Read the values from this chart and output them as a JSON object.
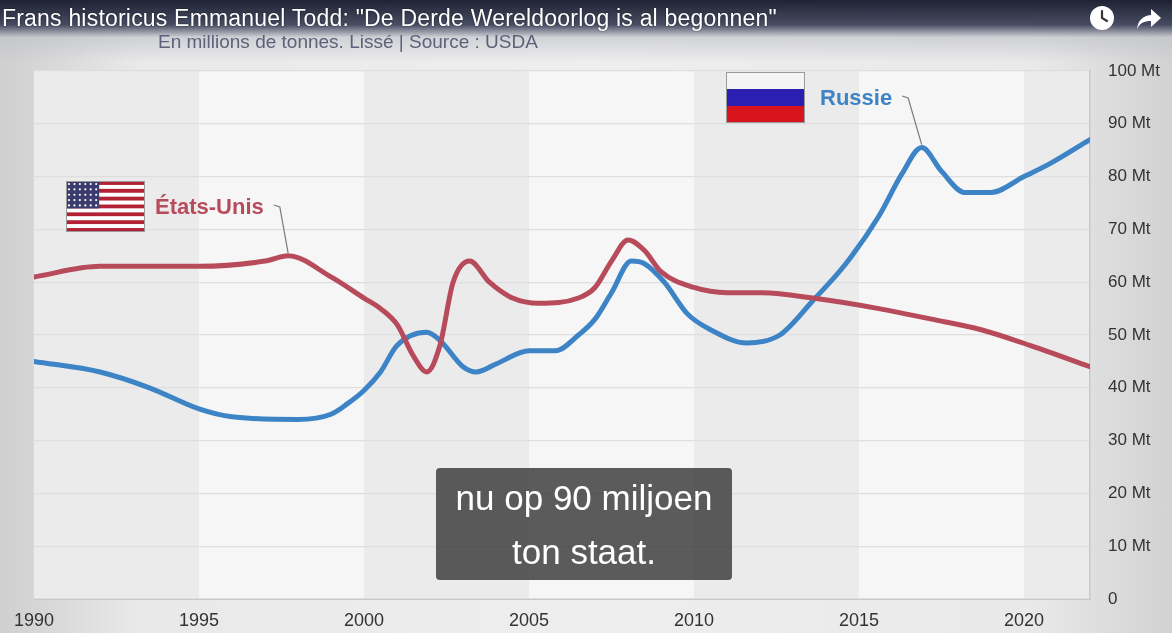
{
  "chart_data": {
    "type": "line",
    "title": "Frans historicus Emmanuel Todd: \"De Derde Wereldoorlog is al begonnen\"",
    "subtitle": "En millions de tonnes. Lissé | Source : USDA",
    "annotations": [
      "nu op 90 miljoen ton staat."
    ],
    "series": [
      {
        "name": "États-Unis",
        "color": "#b84b5b",
        "x": [
          1990,
          1992,
          1993.5,
          1995,
          1997,
          1997.7,
          1999,
          2000,
          2000.5,
          2001,
          2001.5,
          2001.9,
          2002.3,
          2002.7,
          2003.2,
          2003.8,
          2004.5,
          2005.3,
          2006.5,
          2007,
          2007.5,
          2008,
          2008.5,
          2009,
          2010,
          2011,
          2012,
          2013.6,
          2015.6,
          2017.2,
          2018.7,
          2020.2,
          2022
        ],
        "values": [
          61,
          63,
          63,
          63,
          64,
          65,
          61,
          57,
          55,
          52,
          46,
          43,
          48,
          60,
          64,
          60,
          57,
          56,
          57,
          59,
          64,
          68,
          66,
          62,
          59,
          58,
          58,
          57,
          55,
          53,
          51,
          48,
          44
        ]
      },
      {
        "name": "Russie",
        "color": "#3d84c6",
        "x": [
          1990,
          1992,
          1993.5,
          1995,
          1996,
          1998,
          1999,
          1999.5,
          2000,
          2000.5,
          2001,
          2001.9,
          2002.3,
          2003,
          2003.4,
          2004,
          2005,
          2005.8,
          2006.5,
          2007,
          2007.5,
          2008.1,
          2008.5,
          2009.1,
          2009.8,
          2010.5,
          2011.6,
          2012.6,
          2013.6,
          2014.6,
          2015.6,
          2016.3,
          2016.9,
          2017.5,
          2018.2,
          2019,
          2020,
          2020.8,
          2022
        ],
        "values": [
          45,
          43,
          40,
          36,
          34.5,
          34,
          35,
          37,
          39.5,
          43,
          48,
          50.5,
          49,
          44,
          43,
          44.5,
          47,
          47,
          50,
          53,
          58,
          64,
          63.5,
          60,
          54,
          51,
          48.5,
          50,
          56.5,
          63.5,
          72.5,
          80.5,
          85.5,
          81,
          77,
          77,
          80,
          82.5,
          87
        ]
      }
    ],
    "xlim": [
      1990,
      2022
    ],
    "xticks": [
      1990,
      1995,
      2000,
      2005,
      2010,
      2015,
      2020
    ],
    "ylim": [
      0,
      100
    ],
    "yticks": [
      0,
      {
        "value": 10,
        "label": "10 Mt"
      },
      {
        "value": 20,
        "label": "20 Mt"
      },
      {
        "value": 30,
        "label": "30 Mt"
      },
      {
        "value": 40,
        "label": "40 Mt"
      },
      {
        "value": 50,
        "label": "50 Mt"
      },
      {
        "value": 60,
        "label": "60 Mt"
      },
      {
        "value": 70,
        "label": "70 Mt"
      },
      {
        "value": 80,
        "label": "80 Mt"
      },
      {
        "value": 90,
        "label": "90 Mt"
      },
      {
        "value": 100,
        "label": "100 Mt"
      }
    ],
    "grid": "y",
    "marker": "none",
    "line_style": "solid",
    "bands": [
      {
        "axis": "x",
        "from": 1995,
        "to": 2000,
        "color": "#f6f6f6"
      },
      {
        "axis": "x",
        "from": 2005,
        "to": 2010,
        "color": "#f6f6f6"
      },
      {
        "axis": "x",
        "from": 2015,
        "to": 2020,
        "color": "#f6f6f6"
      }
    ]
  }
}
